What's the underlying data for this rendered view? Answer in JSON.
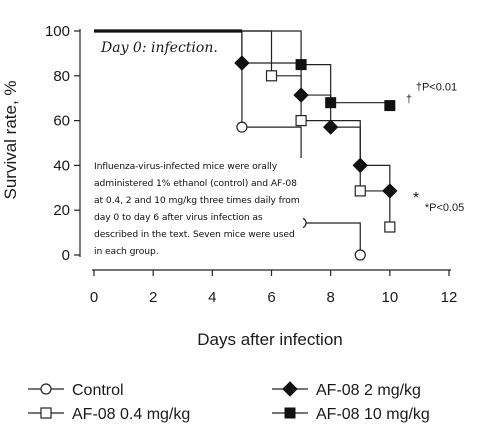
{
  "chart_data": {
    "type": "line",
    "title": "",
    "annotation": "Day 0: infection.",
    "xlabel": "Days after infection",
    "ylabel": "Survival rate, %",
    "xlim": [
      0,
      12
    ],
    "ylim": [
      0,
      100
    ],
    "xticks": [
      0,
      2,
      4,
      6,
      8,
      10,
      12
    ],
    "yticks": [
      0,
      20,
      40,
      60,
      80,
      100
    ],
    "grid": false,
    "legend_position": "bottom",
    "caption": "Influenza-virus-infected mice were orally administered 1% ethanol (control) and AF-08 at 0.4, 2 and 10 mg/kg three times daily from day 0 to day 6 after virus infection as described in the text. Seven mice were used in each group.",
    "significance": [
      {
        "symbol": "†",
        "label": "†P<0.01",
        "series": "AF-08 10 mg/kg"
      },
      {
        "symbol": "*",
        "label": "*P<0.05",
        "series": "AF-08 2 mg/kg"
      }
    ],
    "series": [
      {
        "name": "Control",
        "marker": "open-circle",
        "x": [
          0,
          5,
          7,
          9
        ],
        "y": [
          100,
          57.1,
          14.3,
          0
        ]
      },
      {
        "name": "AF-08 0.4 mg/kg",
        "marker": "open-square",
        "x": [
          0,
          6,
          7,
          9,
          10
        ],
        "y": [
          100,
          80,
          60,
          28.6,
          12.5
        ]
      },
      {
        "name": "AF-08 2 mg/kg",
        "marker": "filled-diamond",
        "x": [
          0,
          5,
          7,
          8,
          9,
          10
        ],
        "y": [
          100,
          85.7,
          71.4,
          57.1,
          40,
          28.6
        ]
      },
      {
        "name": "AF-08 10 mg/kg",
        "marker": "filled-square",
        "x": [
          0,
          7,
          8,
          10
        ],
        "y": [
          100,
          85,
          68,
          66.7
        ]
      }
    ]
  }
}
